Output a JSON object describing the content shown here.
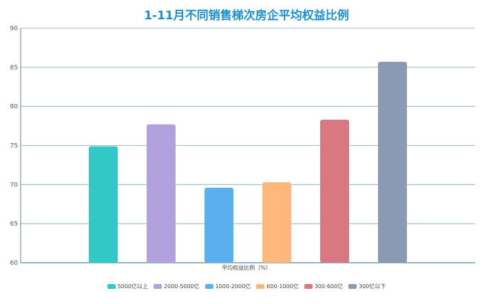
{
  "chart_data": {
    "type": "bar",
    "title": "1-11月不同销售梯次房企平均权益比例",
    "xlabel": "平均权益比例（%）",
    "ylabel": "",
    "ylim": [
      60,
      90
    ],
    "yticks": [
      60,
      65,
      70,
      75,
      80,
      85,
      90
    ],
    "grid": true,
    "legend_position": "bottom",
    "categories": [
      "5000亿以上",
      "2000-5000亿",
      "1000-2000亿",
      "600-1000亿",
      "300-600亿",
      "300亿以下"
    ],
    "values": [
      74.9,
      77.7,
      69.6,
      70.3,
      78.3,
      85.7
    ],
    "colors": [
      "#33c8c8",
      "#b3a1de",
      "#5aafef",
      "#ffb87c",
      "#d97880",
      "#8a9ab5"
    ]
  }
}
